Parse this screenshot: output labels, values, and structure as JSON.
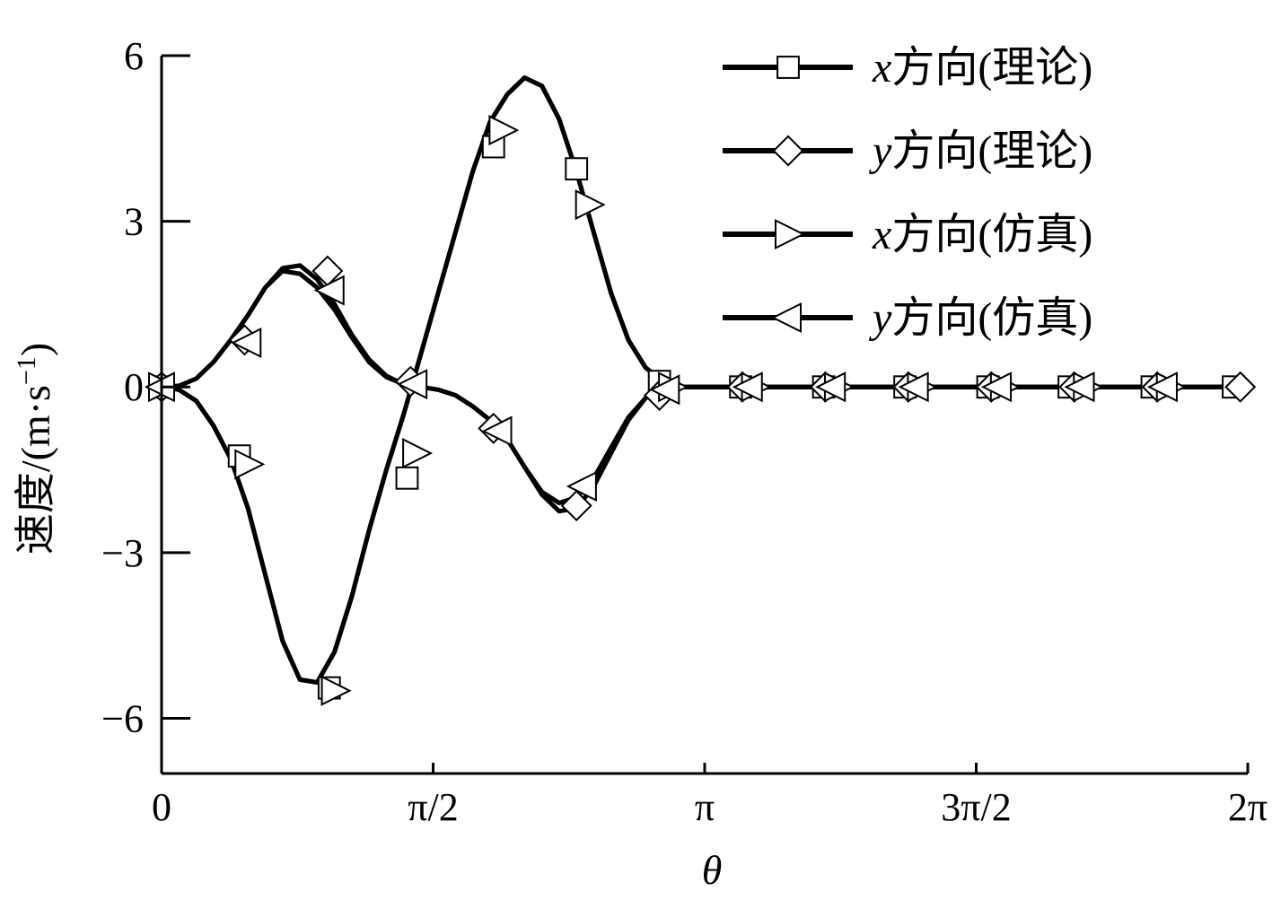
{
  "chart_data": {
    "type": "line",
    "xlabel": "θ",
    "ylabel": "速度/(m·s",
    "ylabel_sup": "−1",
    "ylabel_close": ")",
    "xlim": [
      0,
      6.2832
    ],
    "ylim": [
      -7,
      6
    ],
    "xticks": [
      {
        "value": 0,
        "label": "0"
      },
      {
        "value": 1.5708,
        "label": "π/2"
      },
      {
        "value": 3.1416,
        "label": "π"
      },
      {
        "value": 4.7124,
        "label": "3π/2"
      },
      {
        "value": 6.2832,
        "label": "2π"
      }
    ],
    "yticks": [
      {
        "value": 6,
        "label": "6"
      },
      {
        "value": 3,
        "label": "3"
      },
      {
        "value": 0,
        "label": "0"
      },
      {
        "value": -3,
        "label": "−3"
      },
      {
        "value": -6,
        "label": "−6"
      }
    ],
    "legend_position": "top-right",
    "series": [
      {
        "name_var": "x",
        "name_rest": "方向(理论)",
        "marker": "square",
        "color": "#000000",
        "points": [
          [
            0,
            0
          ],
          [
            0.1,
            -0.05
          ],
          [
            0.2,
            -0.25
          ],
          [
            0.3,
            -0.7
          ],
          [
            0.4,
            -1.3
          ],
          [
            0.5,
            -2.2
          ],
          [
            0.6,
            -3.4
          ],
          [
            0.7,
            -4.6
          ],
          [
            0.8,
            -5.3
          ],
          [
            0.9,
            -5.35
          ],
          [
            1.0,
            -4.8
          ],
          [
            1.1,
            -3.8
          ],
          [
            1.2,
            -2.6
          ],
          [
            1.3,
            -1.5
          ],
          [
            1.4,
            -0.5
          ],
          [
            1.5,
            0.6
          ],
          [
            1.6,
            1.7
          ],
          [
            1.7,
            2.8
          ],
          [
            1.8,
            3.9
          ],
          [
            1.9,
            4.8
          ],
          [
            2.0,
            5.3
          ],
          [
            2.1,
            5.6
          ],
          [
            2.2,
            5.45
          ],
          [
            2.3,
            4.85
          ],
          [
            2.4,
            3.9
          ],
          [
            2.5,
            2.8
          ],
          [
            2.6,
            1.7
          ],
          [
            2.7,
            0.85
          ],
          [
            2.8,
            0.35
          ],
          [
            2.9,
            0.1
          ],
          [
            3.0,
            0
          ],
          [
            6.2832,
            0
          ]
        ],
        "markers": [
          [
            0,
            0
          ],
          [
            0.45,
            -1.25
          ],
          [
            0.97,
            -5.45
          ],
          [
            1.42,
            -1.65
          ],
          [
            1.92,
            4.35
          ],
          [
            2.4,
            3.95
          ],
          [
            2.88,
            0.1
          ],
          [
            3.35,
            0
          ],
          [
            3.83,
            0
          ],
          [
            4.3,
            0
          ],
          [
            4.78,
            0
          ],
          [
            5.25,
            0
          ],
          [
            5.73,
            0
          ],
          [
            6.2,
            0
          ]
        ]
      },
      {
        "name_var": "y",
        "name_rest": "方向(理论)",
        "marker": "diamond",
        "color": "#000000",
        "points": [
          [
            0,
            0
          ],
          [
            0.1,
            0.02
          ],
          [
            0.2,
            0.15
          ],
          [
            0.3,
            0.45
          ],
          [
            0.4,
            0.85
          ],
          [
            0.5,
            1.3
          ],
          [
            0.6,
            1.8
          ],
          [
            0.7,
            2.15
          ],
          [
            0.8,
            2.2
          ],
          [
            0.9,
            1.95
          ],
          [
            1.0,
            1.5
          ],
          [
            1.1,
            0.95
          ],
          [
            1.2,
            0.5
          ],
          [
            1.3,
            0.2
          ],
          [
            1.4,
            0.05
          ],
          [
            1.5,
            0
          ],
          [
            1.6,
            -0.05
          ],
          [
            1.7,
            -0.15
          ],
          [
            1.8,
            -0.35
          ],
          [
            1.9,
            -0.6
          ],
          [
            2.0,
            -0.95
          ],
          [
            2.1,
            -1.45
          ],
          [
            2.2,
            -1.95
          ],
          [
            2.3,
            -2.25
          ],
          [
            2.4,
            -2.2
          ],
          [
            2.5,
            -1.8
          ],
          [
            2.6,
            -1.2
          ],
          [
            2.7,
            -0.6
          ],
          [
            2.8,
            -0.2
          ],
          [
            2.9,
            -0.05
          ],
          [
            3.0,
            0
          ],
          [
            6.2832,
            0
          ]
        ],
        "markers": [
          [
            0,
            0
          ],
          [
            0.48,
            0.85
          ],
          [
            0.96,
            2.1
          ],
          [
            1.44,
            0.1
          ],
          [
            1.92,
            -0.75
          ],
          [
            2.4,
            -2.15
          ],
          [
            2.88,
            -0.15
          ],
          [
            3.36,
            0
          ],
          [
            3.84,
            0
          ],
          [
            4.32,
            0
          ],
          [
            4.8,
            0
          ],
          [
            5.28,
            0
          ],
          [
            5.76,
            0
          ],
          [
            6.24,
            0
          ]
        ]
      },
      {
        "name_var": "x",
        "name_rest": "方向(仿真)",
        "marker": "triangle-right",
        "color": "#000000",
        "points": [
          [
            0,
            0
          ],
          [
            0.1,
            -0.05
          ],
          [
            0.2,
            -0.25
          ],
          [
            0.3,
            -0.7
          ],
          [
            0.4,
            -1.3
          ],
          [
            0.5,
            -2.2
          ],
          [
            0.6,
            -3.4
          ],
          [
            0.7,
            -4.6
          ],
          [
            0.8,
            -5.3
          ],
          [
            0.9,
            -5.35
          ],
          [
            1.0,
            -4.8
          ],
          [
            1.1,
            -3.8
          ],
          [
            1.2,
            -2.6
          ],
          [
            1.3,
            -1.5
          ],
          [
            1.4,
            -0.5
          ],
          [
            1.5,
            0.6
          ],
          [
            1.6,
            1.7
          ],
          [
            1.7,
            2.8
          ],
          [
            1.8,
            3.9
          ],
          [
            1.9,
            4.8
          ],
          [
            2.0,
            5.3
          ],
          [
            2.1,
            5.6
          ],
          [
            2.2,
            5.45
          ],
          [
            2.3,
            4.85
          ],
          [
            2.4,
            3.9
          ],
          [
            2.5,
            2.8
          ],
          [
            2.6,
            1.7
          ],
          [
            2.7,
            0.85
          ],
          [
            2.8,
            0.35
          ],
          [
            2.9,
            0.1
          ],
          [
            3.0,
            0
          ],
          [
            6.2832,
            0
          ]
        ],
        "markers": [
          [
            0,
            0
          ],
          [
            0.5,
            -1.4
          ],
          [
            1.0,
            -5.5
          ],
          [
            1.47,
            -1.2
          ],
          [
            1.97,
            4.65
          ],
          [
            2.47,
            3.3
          ],
          [
            2.95,
            0
          ],
          [
            3.43,
            0
          ],
          [
            3.91,
            0
          ],
          [
            4.39,
            0
          ],
          [
            4.87,
            0
          ],
          [
            5.35,
            0
          ],
          [
            5.83,
            0
          ]
        ]
      },
      {
        "name_var": "y",
        "name_rest": "方向(仿真)",
        "marker": "triangle-left",
        "color": "#000000",
        "points": [
          [
            0,
            0
          ],
          [
            0.1,
            0.02
          ],
          [
            0.2,
            0.15
          ],
          [
            0.3,
            0.45
          ],
          [
            0.4,
            0.85
          ],
          [
            0.5,
            1.3
          ],
          [
            0.6,
            1.8
          ],
          [
            0.7,
            2.1
          ],
          [
            0.8,
            2.05
          ],
          [
            0.9,
            1.8
          ],
          [
            1.0,
            1.4
          ],
          [
            1.1,
            0.9
          ],
          [
            1.2,
            0.45
          ],
          [
            1.3,
            0.18
          ],
          [
            1.4,
            0.05
          ],
          [
            1.5,
            0
          ],
          [
            1.6,
            -0.05
          ],
          [
            1.7,
            -0.15
          ],
          [
            1.8,
            -0.35
          ],
          [
            1.9,
            -0.6
          ],
          [
            2.0,
            -0.95
          ],
          [
            2.1,
            -1.45
          ],
          [
            2.2,
            -1.9
          ],
          [
            2.3,
            -2.1
          ],
          [
            2.4,
            -2.0
          ],
          [
            2.5,
            -1.65
          ],
          [
            2.6,
            -1.1
          ],
          [
            2.7,
            -0.55
          ],
          [
            2.8,
            -0.2
          ],
          [
            2.9,
            -0.05
          ],
          [
            3.0,
            0
          ],
          [
            6.2832,
            0
          ]
        ],
        "markers": [
          [
            0,
            0
          ],
          [
            0.5,
            0.8
          ],
          [
            0.98,
            1.75
          ],
          [
            1.46,
            0.05
          ],
          [
            1.95,
            -0.8
          ],
          [
            2.44,
            -1.8
          ],
          [
            2.92,
            -0.05
          ],
          [
            3.4,
            0
          ],
          [
            3.88,
            0
          ],
          [
            4.36,
            0
          ],
          [
            4.84,
            0
          ],
          [
            5.32,
            0
          ],
          [
            5.8,
            0
          ]
        ]
      }
    ]
  }
}
